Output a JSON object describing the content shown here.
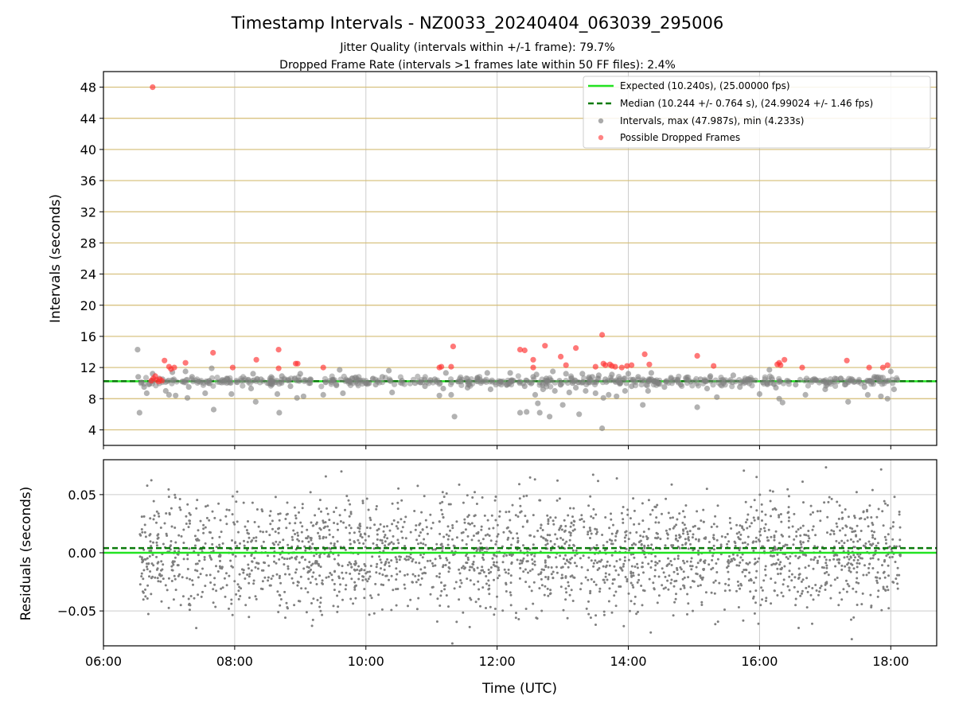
{
  "title": "Timestamp Intervals - NZ0033_20240404_063039_295006",
  "subtitle1": "Jitter Quality (intervals within +/-1 frame): 79.7%",
  "subtitle2": "Dropped Frame Rate (intervals >1 frames late within 50 FF files): 2.4%",
  "colors": {
    "expected": "#22e322",
    "median": "#0a7a0a",
    "intervals": "#7f7f7f",
    "dropped": "#ff3030",
    "grid_top": "#d4bd75",
    "grid": "#cccccc",
    "points_dark": "#555555"
  },
  "chart_data": [
    {
      "type": "scatter",
      "name": "intervals",
      "ylabel": "Intervals (seconds)",
      "xlim": [
        6.0,
        18.7
      ],
      "ylim": [
        2.0,
        50.0
      ],
      "yticks": [
        4,
        8,
        12,
        16,
        20,
        24,
        28,
        32,
        36,
        40,
        44,
        48
      ],
      "ytick_labels": [
        "4",
        "8",
        "12",
        "16",
        "20",
        "24",
        "28",
        "32",
        "36",
        "40",
        "44",
        "48"
      ],
      "xticks": [
        6,
        8,
        10,
        12,
        14,
        16,
        18
      ],
      "x_unit": "hour of day (UTC)",
      "grid": true,
      "legend_position": "top-right",
      "legend": [
        "Expected (10.240s), (25.00000 fps)",
        "Median (10.244 +/- 0.764 s), (24.99024 +/- 1.46 fps)",
        "Intervals, max (47.987s), min (4.233s)",
        "Possible Dropped Frames"
      ],
      "expected_interval": 10.24,
      "median_interval": 10.244,
      "intervals_max": 47.987,
      "intervals_min": 4.233,
      "intervals_points": [
        [
          6.52,
          14.3
        ],
        [
          6.53,
          10.8
        ],
        [
          6.55,
          6.2
        ],
        [
          6.58,
          10.1
        ],
        [
          6.62,
          9.5
        ],
        [
          6.66,
          8.7
        ],
        [
          6.7,
          9.9
        ],
        [
          6.75,
          11.2
        ],
        [
          6.9,
          10.5
        ],
        [
          6.95,
          9.0
        ],
        [
          7.0,
          8.5
        ],
        [
          7.05,
          11.4
        ],
        [
          7.1,
          8.4
        ],
        [
          7.2,
          10.2
        ],
        [
          7.25,
          11.5
        ],
        [
          7.28,
          8.1
        ],
        [
          7.3,
          9.5
        ],
        [
          7.35,
          10.8
        ],
        [
          7.45,
          10.2
        ],
        [
          7.55,
          8.7
        ],
        [
          7.6,
          10.0
        ],
        [
          7.65,
          11.9
        ],
        [
          7.68,
          6.6
        ],
        [
          7.8,
          10.3
        ],
        [
          7.95,
          8.6
        ],
        [
          8.1,
          10.3
        ],
        [
          8.25,
          9.3
        ],
        [
          8.28,
          11.2
        ],
        [
          8.32,
          7.6
        ],
        [
          8.4,
          10.5
        ],
        [
          8.55,
          9.9
        ],
        [
          8.65,
          8.6
        ],
        [
          8.68,
          6.2
        ],
        [
          8.72,
          10.9
        ],
        [
          8.85,
          9.6
        ],
        [
          8.95,
          8.1
        ],
        [
          9.0,
          11.2
        ],
        [
          9.05,
          8.3
        ],
        [
          9.15,
          10.0
        ],
        [
          9.35,
          8.5
        ],
        [
          9.45,
          10.3
        ],
        [
          9.55,
          9.7
        ],
        [
          9.6,
          11.7
        ],
        [
          9.65,
          8.7
        ],
        [
          9.75,
          10.2
        ],
        [
          10.0,
          10.0
        ],
        [
          10.15,
          9.8
        ],
        [
          10.25,
          10.8
        ],
        [
          10.35,
          11.6
        ],
        [
          10.4,
          8.8
        ],
        [
          10.55,
          10.3
        ],
        [
          10.75,
          10.0
        ],
        [
          10.9,
          9.6
        ],
        [
          11.05,
          10.5
        ],
        [
          11.12,
          8.4
        ],
        [
          11.18,
          9.3
        ],
        [
          11.22,
          11.3
        ],
        [
          11.3,
          8.5
        ],
        [
          11.35,
          5.7
        ],
        [
          11.45,
          10.2
        ],
        [
          11.55,
          9.4
        ],
        [
          11.7,
          10.7
        ],
        [
          11.85,
          11.3
        ],
        [
          11.9,
          9.2
        ],
        [
          12.05,
          10.2
        ],
        [
          12.15,
          9.8
        ],
        [
          12.2,
          11.3
        ],
        [
          12.25,
          10.3
        ],
        [
          12.35,
          6.2
        ],
        [
          12.42,
          9.6
        ],
        [
          12.45,
          6.3
        ],
        [
          12.55,
          10.8
        ],
        [
          12.58,
          8.5
        ],
        [
          12.6,
          11.1
        ],
        [
          12.62,
          7.4
        ],
        [
          12.65,
          6.2
        ],
        [
          12.7,
          9.2
        ],
        [
          12.75,
          10.6
        ],
        [
          12.8,
          5.7
        ],
        [
          12.85,
          11.5
        ],
        [
          12.88,
          9.0
        ],
        [
          12.95,
          10.3
        ],
        [
          13.0,
          7.2
        ],
        [
          13.05,
          11.2
        ],
        [
          13.1,
          8.8
        ],
        [
          13.15,
          10.0
        ],
        [
          13.2,
          9.4
        ],
        [
          13.25,
          6.0
        ],
        [
          13.3,
          11.2
        ],
        [
          13.35,
          9.0
        ],
        [
          13.45,
          10.8
        ],
        [
          13.5,
          8.7
        ],
        [
          13.55,
          11.0
        ],
        [
          13.6,
          4.2
        ],
        [
          13.62,
          8.1
        ],
        [
          13.65,
          10.5
        ],
        [
          13.7,
          8.5
        ],
        [
          13.75,
          11.1
        ],
        [
          13.82,
          8.3
        ],
        [
          13.88,
          10.0
        ],
        [
          13.95,
          9.0
        ],
        [
          14.0,
          11.2
        ],
        [
          14.05,
          9.6
        ],
        [
          14.15,
          10.8
        ],
        [
          14.22,
          7.2
        ],
        [
          14.25,
          10.3
        ],
        [
          14.3,
          9.0
        ],
        [
          14.35,
          11.3
        ],
        [
          14.45,
          10.0
        ],
        [
          14.55,
          9.5
        ],
        [
          14.65,
          10.7
        ],
        [
          14.8,
          9.8
        ],
        [
          14.95,
          10.2
        ],
        [
          15.05,
          6.9
        ],
        [
          15.1,
          10.5
        ],
        [
          15.2,
          9.3
        ],
        [
          15.25,
          10.9
        ],
        [
          15.35,
          8.2
        ],
        [
          15.45,
          10.0
        ],
        [
          15.6,
          11.0
        ],
        [
          15.7,
          9.5
        ],
        [
          15.85,
          10.4
        ],
        [
          16.0,
          8.6
        ],
        [
          16.05,
          10.1
        ],
        [
          16.15,
          11.7
        ],
        [
          16.25,
          9.4
        ],
        [
          16.3,
          8.0
        ],
        [
          16.35,
          7.5
        ],
        [
          16.42,
          10.3
        ],
        [
          16.55,
          9.8
        ],
        [
          16.7,
          8.5
        ],
        [
          16.85,
          10.4
        ],
        [
          17.0,
          9.2
        ],
        [
          17.15,
          10.6
        ],
        [
          17.3,
          9.8
        ],
        [
          17.35,
          7.6
        ],
        [
          17.45,
          10.2
        ],
        [
          17.6,
          9.5
        ],
        [
          17.65,
          8.5
        ],
        [
          17.75,
          10.8
        ],
        [
          17.85,
          8.3
        ],
        [
          17.95,
          8.0
        ],
        [
          18.0,
          11.5
        ],
        [
          18.05,
          9.2
        ],
        [
          18.1,
          10.4
        ]
      ],
      "dropped_points": [
        [
          6.75,
          48.0
        ],
        [
          6.73,
          10.3
        ],
        [
          6.76,
          10.6
        ],
        [
          6.79,
          10.9
        ],
        [
          6.81,
          10.4
        ],
        [
          6.84,
          10.2
        ],
        [
          6.86,
          10.5
        ],
        [
          6.89,
          10.3
        ],
        [
          6.93,
          12.9
        ],
        [
          7.0,
          12.1
        ],
        [
          7.03,
          11.8
        ],
        [
          7.08,
          12.0
        ],
        [
          7.25,
          12.6
        ],
        [
          7.67,
          13.9
        ],
        [
          7.97,
          12.0
        ],
        [
          8.33,
          13.0
        ],
        [
          8.67,
          14.3
        ],
        [
          8.67,
          11.9
        ],
        [
          8.93,
          12.5
        ],
        [
          8.96,
          12.5
        ],
        [
          9.35,
          12.0
        ],
        [
          11.12,
          12.0
        ],
        [
          11.15,
          12.1
        ],
        [
          11.3,
          12.1
        ],
        [
          11.33,
          14.7
        ],
        [
          12.35,
          14.3
        ],
        [
          12.42,
          14.2
        ],
        [
          12.55,
          13.0
        ],
        [
          12.55,
          12.0
        ],
        [
          12.73,
          14.8
        ],
        [
          12.97,
          13.4
        ],
        [
          13.05,
          12.3
        ],
        [
          13.2,
          14.5
        ],
        [
          13.5,
          12.1
        ],
        [
          13.6,
          16.2
        ],
        [
          13.62,
          12.5
        ],
        [
          13.65,
          12.3
        ],
        [
          13.72,
          12.4
        ],
        [
          13.75,
          12.2
        ],
        [
          13.8,
          12.1
        ],
        [
          13.9,
          12.0
        ],
        [
          13.98,
          12.2
        ],
        [
          14.05,
          12.3
        ],
        [
          14.25,
          13.7
        ],
        [
          14.32,
          12.4
        ],
        [
          15.05,
          13.5
        ],
        [
          15.3,
          12.2
        ],
        [
          16.27,
          12.4
        ],
        [
          16.3,
          12.6
        ],
        [
          16.32,
          12.3
        ],
        [
          16.38,
          13.0
        ],
        [
          16.65,
          12.0
        ],
        [
          17.33,
          12.9
        ],
        [
          17.67,
          12.0
        ],
        [
          17.88,
          12.0
        ],
        [
          17.95,
          12.3
        ]
      ]
    },
    {
      "type": "scatter",
      "name": "residuals",
      "xlabel": "Time (UTC)",
      "ylabel": "Residuals (seconds)",
      "xlim": [
        6.0,
        18.7
      ],
      "ylim": [
        -0.08,
        0.08
      ],
      "yticks": [
        -0.05,
        0.0,
        0.05
      ],
      "ytick_labels": [
        "−0.05",
        "0.00",
        "0.05"
      ],
      "xticks": [
        6,
        8,
        10,
        12,
        14,
        16,
        18
      ],
      "xtick_labels": [
        "06:00",
        "08:00",
        "10:00",
        "12:00",
        "14:00",
        "16:00",
        "18:00"
      ],
      "x_range_of_points": [
        6.55,
        18.15
      ],
      "expected_residual": 0.0,
      "median_residual": 0.004,
      "residual_spread_sd": 0.025,
      "grid": true
    }
  ]
}
